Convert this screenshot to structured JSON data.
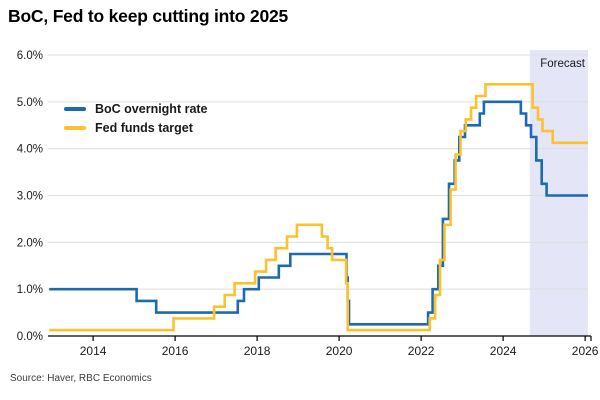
{
  "title": "BoC, Fed to keep cutting into 2025",
  "source": "Source: Haver, RBC Economics",
  "chart_data": {
    "type": "line",
    "title": "BoC, Fed to keep cutting into 2025",
    "xlabel": "",
    "ylabel": "",
    "step_interpolation": "step-after",
    "grid": "horizontal",
    "legend_position": "upper-left-inside",
    "xlim": [
      2012.9,
      2026.07
    ],
    "ylim": [
      0,
      6
    ],
    "xticks": [
      2014,
      2016,
      2018,
      2020,
      2022,
      2024,
      2026
    ],
    "xtick_labels": [
      "2014",
      "2016",
      "2018",
      "2020",
      "2022",
      "2024",
      "2026"
    ],
    "yticks": [
      0,
      1,
      2,
      3,
      4,
      5,
      6
    ],
    "ytick_labels": [
      "0.0%",
      "1.0%",
      "2.0%",
      "3.0%",
      "4.0%",
      "5.0%",
      "6.0%"
    ],
    "forecast_band": {
      "label": "Forecast",
      "start": 2024.65,
      "end": 2026.07,
      "color": "#e5e5f8"
    },
    "colors": {
      "grid": "#dedede",
      "axis": "#000000",
      "tick_text": "#1a1a1a"
    },
    "series": [
      {
        "name": "BoC overnight rate",
        "color": "#1d6ab1",
        "points": [
          [
            2012.93,
            1.0
          ],
          [
            2015.06,
            0.75
          ],
          [
            2015.54,
            0.5
          ],
          [
            2017.53,
            0.75
          ],
          [
            2017.68,
            1.0
          ],
          [
            2018.04,
            1.25
          ],
          [
            2018.53,
            1.5
          ],
          [
            2018.81,
            1.75
          ],
          [
            2020.18,
            1.25
          ],
          [
            2020.21,
            0.75
          ],
          [
            2020.24,
            0.25
          ],
          [
            2022.17,
            0.5
          ],
          [
            2022.28,
            1.0
          ],
          [
            2022.42,
            1.5
          ],
          [
            2022.53,
            2.5
          ],
          [
            2022.68,
            3.25
          ],
          [
            2022.82,
            3.75
          ],
          [
            2022.93,
            4.25
          ],
          [
            2023.07,
            4.5
          ],
          [
            2023.43,
            4.75
          ],
          [
            2023.53,
            5.0
          ],
          [
            2024.43,
            4.75
          ],
          [
            2024.56,
            4.5
          ],
          [
            2024.68,
            4.25
          ],
          [
            2024.81,
            3.75
          ],
          [
            2024.94,
            3.25
          ],
          [
            2025.06,
            3.0
          ]
        ]
      },
      {
        "name": "Fed funds target",
        "color": "#fcc12d",
        "points": [
          [
            2012.93,
            0.125
          ],
          [
            2015.96,
            0.375
          ],
          [
            2016.95,
            0.625
          ],
          [
            2017.21,
            0.875
          ],
          [
            2017.45,
            1.125
          ],
          [
            2017.95,
            1.375
          ],
          [
            2018.22,
            1.625
          ],
          [
            2018.45,
            1.875
          ],
          [
            2018.73,
            2.125
          ],
          [
            2018.97,
            2.375
          ],
          [
            2019.58,
            2.125
          ],
          [
            2019.72,
            1.875
          ],
          [
            2019.83,
            1.625
          ],
          [
            2020.17,
            1.125
          ],
          [
            2020.21,
            0.125
          ],
          [
            2022.21,
            0.375
          ],
          [
            2022.34,
            0.875
          ],
          [
            2022.46,
            1.625
          ],
          [
            2022.57,
            2.375
          ],
          [
            2022.72,
            3.125
          ],
          [
            2022.84,
            3.875
          ],
          [
            2022.96,
            4.375
          ],
          [
            2023.09,
            4.625
          ],
          [
            2023.22,
            4.875
          ],
          [
            2023.34,
            5.125
          ],
          [
            2023.57,
            5.375
          ],
          [
            2024.72,
            4.875
          ],
          [
            2024.85,
            4.625
          ],
          [
            2024.96,
            4.375
          ],
          [
            2025.21,
            4.125
          ]
        ]
      }
    ]
  }
}
